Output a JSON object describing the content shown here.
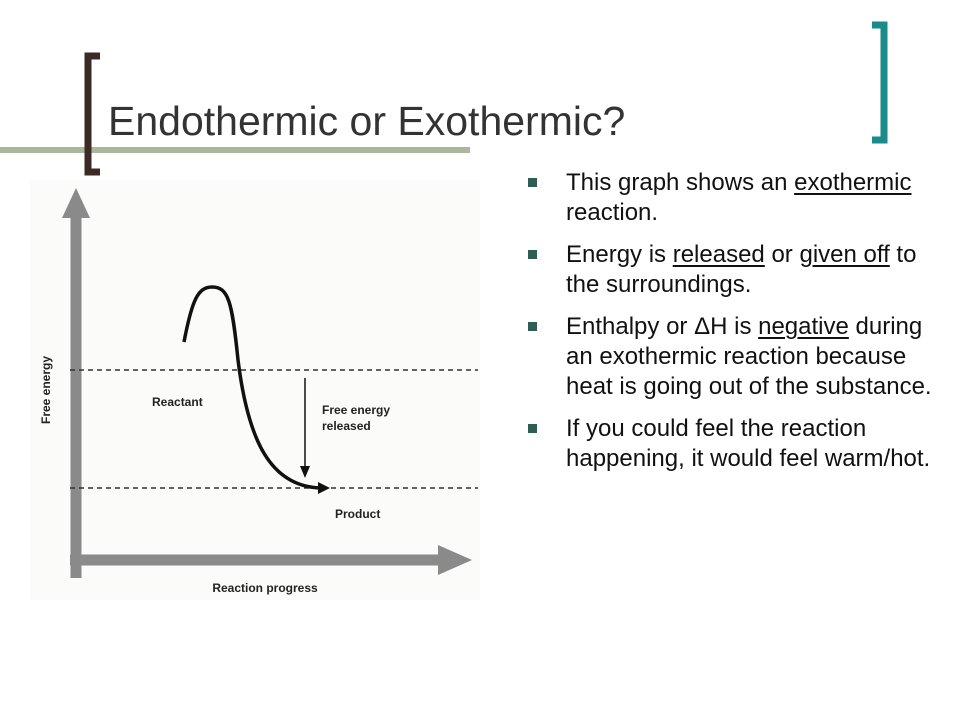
{
  "title": "Endothermic or Exothermic?",
  "diagram": {
    "y_axis_label": "Free energy",
    "x_axis_label": "Reaction progress",
    "reactant_label": "Reactant",
    "product_label": "Product",
    "arrow_label": [
      "Free energy",
      "released"
    ]
  },
  "bullets": [
    {
      "parts": [
        "This graph shows an ",
        "exothermic",
        " reaction."
      ],
      "underlined": [
        1
      ]
    },
    {
      "parts": [
        "Energy is ",
        "released",
        " or ",
        "given off",
        " to the surroundings."
      ],
      "underlined": [
        1,
        3
      ]
    },
    {
      "parts": [
        "Enthalpy or ΔH is ",
        "negative",
        " during an exothermic reaction because heat is going out of the substance."
      ],
      "underlined": [
        1
      ]
    },
    {
      "parts": [
        "If you could feel the reaction happening, it would feel warm/hot."
      ],
      "underlined": []
    }
  ]
}
